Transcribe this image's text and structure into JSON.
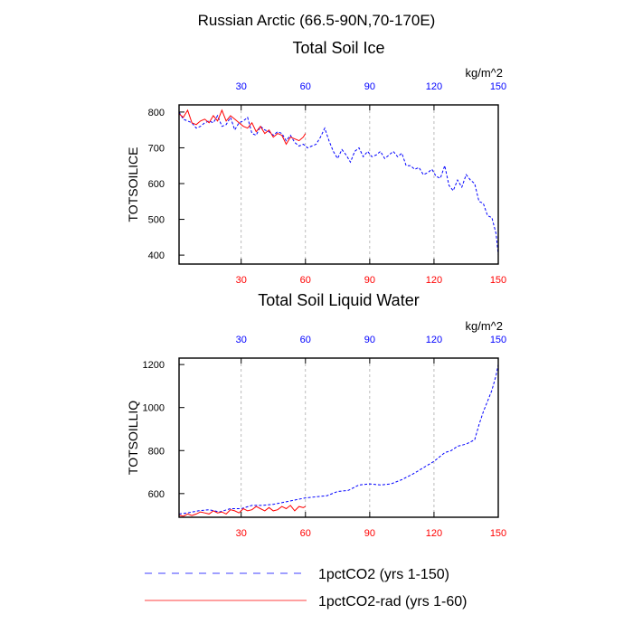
{
  "figure_title": "Russian Arctic (66.5-90N,70-170E)",
  "legend": [
    {
      "label": "1pctCO2 (yrs 1-150)",
      "color": "#0000ff",
      "dash": true
    },
    {
      "label": "1pctCO2-rad (yrs 1-60)",
      "color": "#ff0000",
      "dash": false
    }
  ],
  "chart_data": [
    {
      "type": "line",
      "title": "Total Soil Ice",
      "ylabel": "TOTSOILICE",
      "units": "kg/m^2",
      "xlim": [
        1,
        150
      ],
      "ylim": [
        375,
        820
      ],
      "xticks": [
        30,
        60,
        90,
        120,
        150
      ],
      "yticks": [
        400,
        500,
        600,
        700,
        800
      ],
      "top_tick_color": "#0000ff",
      "bottom_tick_color": "#ff0000",
      "grid": "vertical-dashed",
      "series": [
        {
          "name": "1pctCO2 (yrs 1-150)",
          "color": "#0000ff",
          "dash": true,
          "x": [
            1,
            3,
            5,
            7,
            9,
            11,
            13,
            15,
            17,
            19,
            21,
            23,
            25,
            27,
            29,
            31,
            33,
            35,
            37,
            39,
            41,
            43,
            45,
            47,
            49,
            51,
            53,
            55,
            57,
            59,
            61,
            63,
            65,
            67,
            69,
            71,
            73,
            75,
            77,
            79,
            81,
            83,
            85,
            87,
            89,
            91,
            93,
            95,
            97,
            99,
            101,
            103,
            105,
            107,
            109,
            111,
            113,
            115,
            117,
            119,
            121,
            123,
            125,
            127,
            129,
            131,
            133,
            135,
            137,
            139,
            141,
            143,
            145,
            147,
            149,
            150
          ],
          "y": [
            800,
            780,
            775,
            770,
            755,
            760,
            770,
            775,
            770,
            790,
            760,
            765,
            785,
            750,
            770,
            775,
            785,
            740,
            735,
            760,
            750,
            745,
            735,
            745,
            740,
            720,
            735,
            715,
            705,
            710,
            700,
            705,
            710,
            730,
            755,
            720,
            690,
            670,
            695,
            680,
            660,
            690,
            700,
            675,
            690,
            675,
            680,
            690,
            670,
            680,
            690,
            675,
            685,
            650,
            650,
            640,
            645,
            625,
            630,
            640,
            620,
            615,
            650,
            595,
            580,
            610,
            590,
            625,
            610,
            600,
            550,
            545,
            510,
            505,
            460,
            400
          ]
        },
        {
          "name": "1pctCO2-rad (yrs 1-60)",
          "color": "#ff0000",
          "dash": false,
          "x": [
            1,
            3,
            5,
            7,
            9,
            11,
            13,
            15,
            17,
            19,
            21,
            23,
            25,
            27,
            29,
            31,
            33,
            35,
            37,
            39,
            41,
            43,
            45,
            47,
            49,
            51,
            53,
            55,
            57,
            59,
            60
          ],
          "y": [
            795,
            785,
            805,
            770,
            765,
            775,
            780,
            770,
            790,
            775,
            805,
            775,
            790,
            780,
            770,
            760,
            755,
            770,
            745,
            760,
            740,
            750,
            730,
            740,
            735,
            710,
            730,
            725,
            720,
            730,
            740
          ]
        }
      ]
    },
    {
      "type": "line",
      "title": "Total Soil Liquid Water",
      "ylabel": "TOTSOILLIQ",
      "units": "kg/m^2",
      "xlim": [
        1,
        150
      ],
      "ylim": [
        490,
        1230
      ],
      "xticks": [
        30,
        60,
        90,
        120,
        150
      ],
      "yticks": [
        600,
        800,
        1000,
        1200
      ],
      "top_tick_color": "#0000ff",
      "bottom_tick_color": "#ff0000",
      "grid": "vertical-dashed",
      "series": [
        {
          "name": "1pctCO2 (yrs 1-150)",
          "color": "#0000ff",
          "dash": true,
          "x": [
            1,
            5,
            10,
            15,
            20,
            25,
            30,
            35,
            40,
            45,
            50,
            55,
            60,
            65,
            70,
            75,
            80,
            85,
            90,
            95,
            100,
            105,
            110,
            115,
            120,
            125,
            128,
            131,
            135,
            139,
            141,
            143,
            145,
            147,
            149,
            150
          ],
          "y": [
            505,
            510,
            520,
            525,
            515,
            530,
            530,
            545,
            545,
            550,
            560,
            570,
            580,
            585,
            590,
            610,
            615,
            640,
            645,
            640,
            645,
            665,
            690,
            720,
            750,
            790,
            800,
            820,
            830,
            850,
            920,
            980,
            1030,
            1080,
            1150,
            1200
          ]
        },
        {
          "name": "1pctCO2-rad (yrs 1-60)",
          "color": "#ff0000",
          "dash": false,
          "x": [
            1,
            3,
            5,
            7,
            9,
            11,
            13,
            15,
            17,
            19,
            21,
            23,
            25,
            27,
            29,
            31,
            33,
            35,
            37,
            39,
            41,
            43,
            45,
            47,
            49,
            51,
            53,
            55,
            57,
            59,
            60
          ],
          "y": [
            500,
            495,
            505,
            498,
            505,
            515,
            510,
            505,
            520,
            510,
            515,
            505,
            525,
            520,
            510,
            530,
            520,
            525,
            540,
            530,
            520,
            535,
            520,
            525,
            540,
            530,
            545,
            520,
            540,
            535,
            540
          ]
        }
      ]
    }
  ]
}
